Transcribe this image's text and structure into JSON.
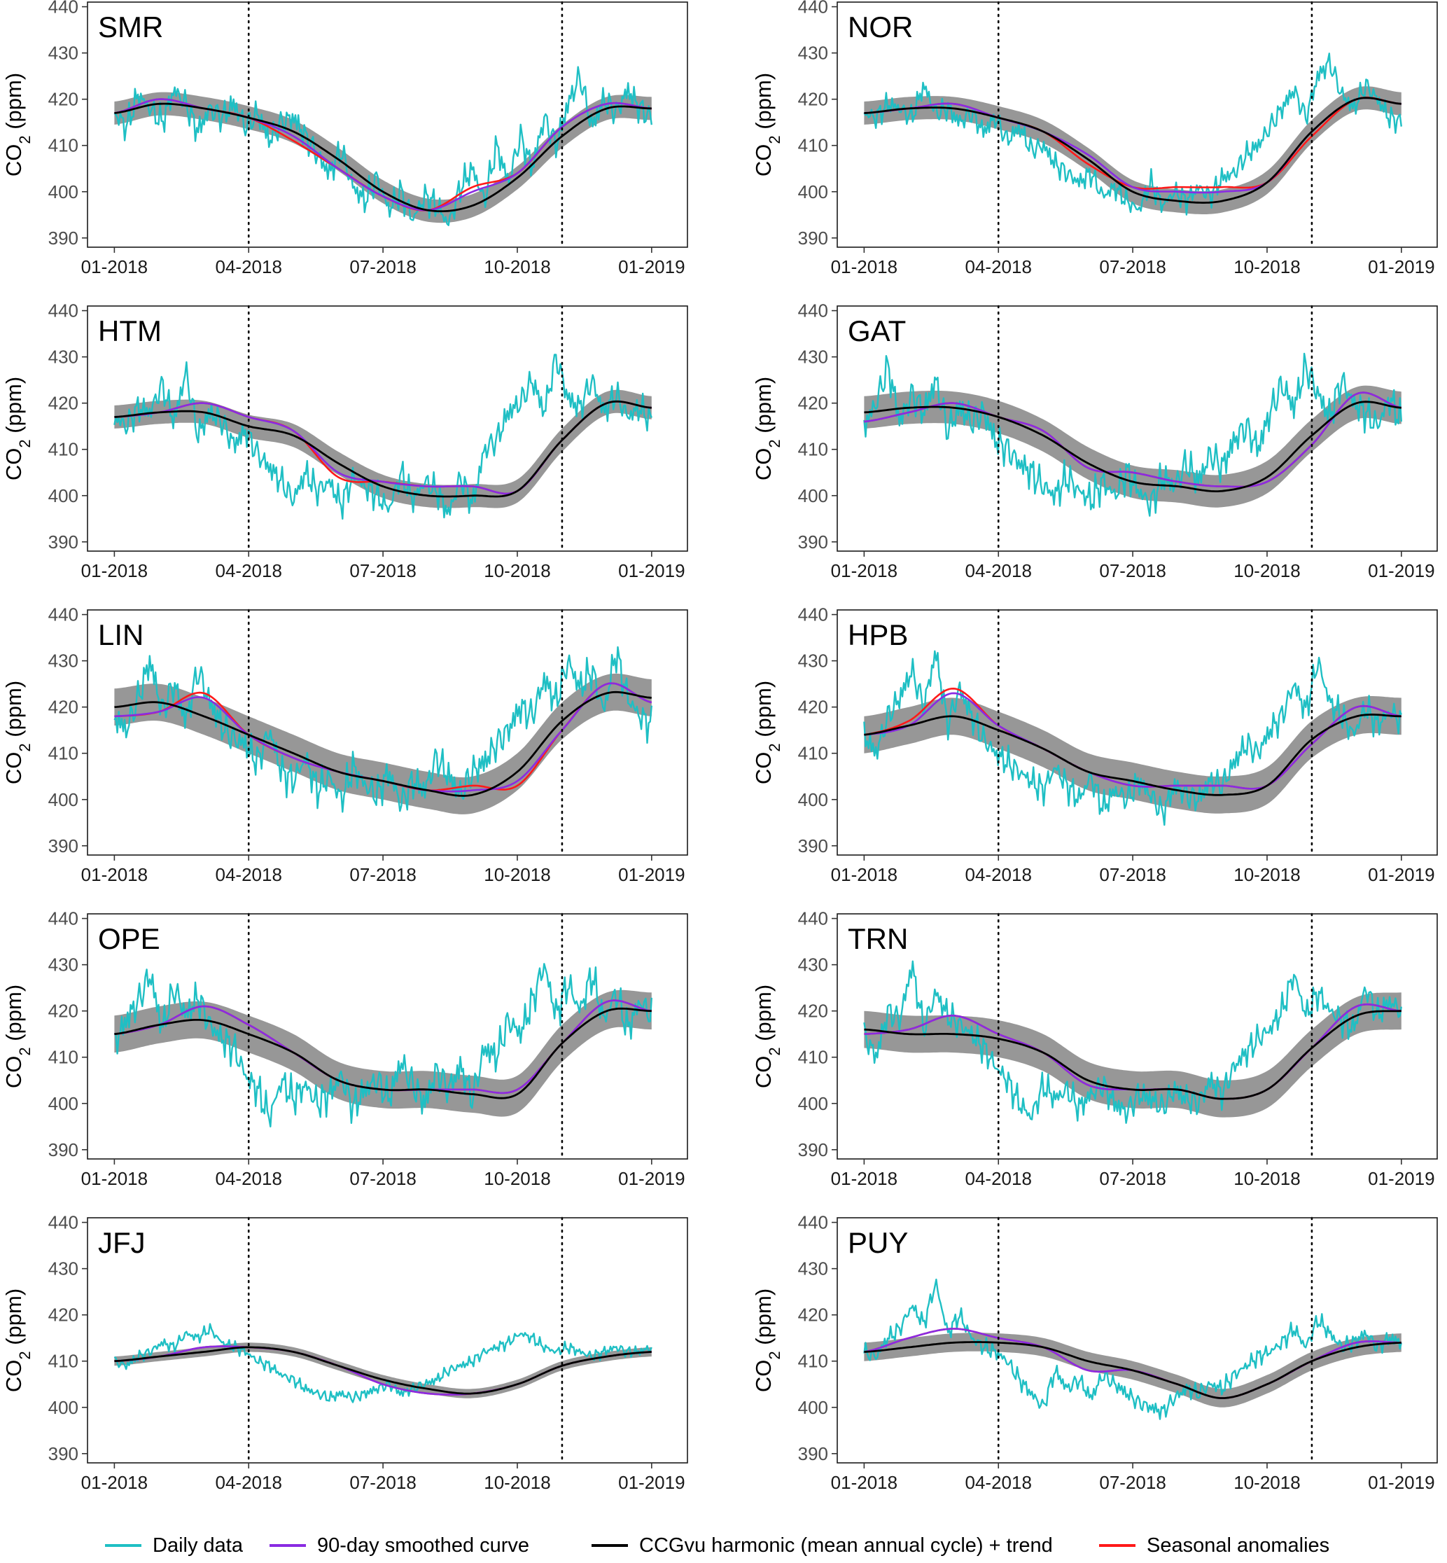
{
  "chart_data": {
    "type": "line",
    "ylabel": "CO2 (ppm)",
    "ylim": [
      388,
      441
    ],
    "yticks": [
      390,
      400,
      410,
      420,
      430,
      440
    ],
    "xlim": [
      -0.6,
      12.8
    ],
    "x_ticks": [
      {
        "month": 0,
        "label": "01-2018"
      },
      {
        "month": 3,
        "label": "04-2018"
      },
      {
        "month": 6,
        "label": "07-2018"
      },
      {
        "month": 9,
        "label": "10-2018"
      },
      {
        "month": 12,
        "label": "01-2019"
      }
    ],
    "vertical_reference_lines_month": [
      3,
      10
    ],
    "grid": false,
    "legend_position": "bottom",
    "legend": [
      {
        "key": "daily",
        "label": "Daily data",
        "color": "#1fbfc4"
      },
      {
        "key": "smoothed",
        "label": "90-day smoothed curve",
        "color": "#8a2be2"
      },
      {
        "key": "harmonic",
        "label": "CCGvu harmonic (mean annual cycle) + trend",
        "color": "#000000"
      },
      {
        "key": "anomaly",
        "label": "Seasonal anomalies",
        "color": "#ff1a1a"
      }
    ],
    "panels": [
      {
        "station": "SMR",
        "months": [
          0,
          1,
          2,
          3,
          4,
          5,
          6,
          7,
          8,
          9,
          10,
          11,
          12
        ],
        "harmonic": [
          417,
          419,
          418,
          416,
          413,
          407,
          400,
          396,
          397,
          403,
          412,
          418,
          418
        ],
        "band": 2.5,
        "smoothed": [
          417,
          420,
          418,
          416,
          412,
          405,
          399,
          396,
          400,
          404,
          414,
          419,
          418
        ],
        "anomaly": [
          417,
          420,
          418,
          416,
          411,
          405,
          399,
          396,
          401,
          404,
          414,
          419,
          418
        ],
        "daily": [
          417,
          414,
          421,
          418,
          415,
          422,
          419,
          413,
          418,
          416,
          419,
          414,
          417,
          411,
          415,
          416,
          412,
          408,
          404,
          409,
          401,
          398,
          403,
          396,
          400,
          394,
          399,
          397,
          393,
          401,
          405,
          398,
          410,
          402,
          412,
          405,
          416,
          410,
          419,
          425,
          414,
          420,
          417,
          422,
          418,
          416
        ],
        "daily_spread": 5
      },
      {
        "station": "NOR",
        "months": [
          0,
          1,
          2,
          3,
          4,
          5,
          6,
          7,
          8,
          9,
          10,
          11,
          12
        ],
        "harmonic": [
          417,
          418,
          418,
          416,
          413,
          407,
          400,
          398,
          398,
          402,
          413,
          420,
          419
        ],
        "band": 2.5,
        "smoothed": [
          417,
          418,
          419,
          416,
          413,
          408,
          401,
          400,
          400,
          402,
          413,
          420,
          419
        ],
        "anomaly": [
          417,
          418,
          419,
          416,
          413,
          406,
          401,
          401,
          401,
          402,
          412,
          420,
          419
        ],
        "daily": [
          417,
          416,
          419,
          418,
          416,
          423,
          417,
          418,
          415,
          417,
          413,
          416,
          411,
          414,
          409,
          410,
          406,
          404,
          402,
          404,
          399,
          401,
          398,
          396,
          402,
          397,
          400,
          398,
          401,
          399,
          403,
          404,
          408,
          410,
          414,
          418,
          422,
          416,
          425,
          428,
          421,
          418,
          423,
          420,
          416,
          415
        ],
        "daily_spread": 4
      },
      {
        "station": "HTM",
        "months": [
          0,
          1,
          2,
          3,
          4,
          5,
          6,
          7,
          8,
          9,
          10,
          11,
          12
        ],
        "harmonic": [
          417,
          418,
          418,
          415,
          413,
          407,
          402,
          400,
          400,
          401,
          412,
          420,
          419
        ],
        "band": 2.5,
        "smoothed": [
          417,
          418,
          420,
          417,
          414,
          405,
          403,
          402,
          402,
          401,
          412,
          420,
          419
        ],
        "anomaly": [
          417,
          418,
          420,
          417,
          414,
          404,
          403,
          402,
          402,
          401,
          412,
          420,
          419
        ],
        "daily": [
          417,
          415,
          419,
          418,
          424,
          416,
          427,
          413,
          418,
          416,
          411,
          414,
          409,
          406,
          403,
          399,
          405,
          401,
          403,
          398,
          404,
          402,
          400,
          397,
          405,
          399,
          403,
          401,
          396,
          404,
          398,
          410,
          412,
          418,
          420,
          425,
          418,
          430,
          421,
          419,
          425,
          418,
          422,
          417,
          419,
          416
        ],
        "daily_spread": 5
      },
      {
        "station": "GAT",
        "months": [
          0,
          1,
          2,
          3,
          4,
          5,
          6,
          7,
          8,
          9,
          10,
          11,
          12
        ],
        "harmonic": [
          418,
          419,
          419,
          417,
          413,
          407,
          403,
          402,
          401,
          404,
          413,
          420,
          419
        ],
        "band": 3.5,
        "smoothed": [
          416,
          418,
          420,
          417,
          414,
          406,
          405,
          403,
          402,
          403,
          411,
          422,
          419
        ],
        "anomaly": [
          416,
          418,
          420,
          417,
          414,
          406,
          405,
          403,
          402,
          403,
          411,
          422,
          419
        ],
        "daily": [
          415,
          420,
          428,
          416,
          422,
          418,
          425,
          414,
          419,
          416,
          418,
          412,
          410,
          407,
          405,
          402,
          400,
          404,
          401,
          399,
          403,
          400,
          405,
          401,
          398,
          404,
          402,
          407,
          403,
          409,
          406,
          412,
          415,
          410,
          418,
          424,
          419,
          428,
          422,
          417,
          425,
          420,
          418,
          415,
          421,
          416
        ],
        "daily_spread": 6
      },
      {
        "station": "LIN",
        "months": [
          0,
          1,
          2,
          3,
          4,
          5,
          6,
          7,
          8,
          9,
          10,
          11,
          12
        ],
        "harmonic": [
          420,
          421,
          418,
          414,
          410,
          406,
          404,
          402,
          401,
          406,
          417,
          423,
          422
        ],
        "band": 4,
        "smoothed": [
          418,
          419,
          422,
          414,
          409,
          406,
          404,
          402,
          402,
          404,
          415,
          425,
          421
        ],
        "anomaly": [
          418,
          419,
          423,
          414,
          409,
          406,
          404,
          402,
          403,
          403,
          415,
          425,
          421
        ],
        "daily": [
          418,
          415,
          422,
          430,
          419,
          425,
          417,
          428,
          421,
          416,
          413,
          412,
          408,
          415,
          406,
          404,
          409,
          402,
          405,
          400,
          407,
          403,
          401,
          406,
          399,
          404,
          402,
          409,
          405,
          401,
          406,
          408,
          412,
          415,
          420,
          418,
          426,
          421,
          430,
          424,
          428,
          419,
          432,
          422,
          418,
          416
        ],
        "daily_spread": 6
      },
      {
        "station": "HPB",
        "months": [
          0,
          1,
          2,
          3,
          4,
          5,
          6,
          7,
          8,
          9,
          10,
          11,
          12
        ],
        "harmonic": [
          414,
          416,
          418,
          415,
          411,
          406,
          404,
          402,
          401,
          403,
          413,
          418,
          418
        ],
        "band": 4,
        "smoothed": [
          414,
          416,
          423,
          416,
          411,
          406,
          403,
          403,
          403,
          403,
          412,
          420,
          418
        ],
        "anomaly": [
          414,
          417,
          424,
          416,
          411,
          406,
          403,
          403,
          403,
          403,
          412,
          420,
          418
        ],
        "daily": [
          414,
          410,
          418,
          422,
          428,
          420,
          432,
          416,
          424,
          418,
          413,
          410,
          408,
          406,
          404,
          402,
          407,
          403,
          400,
          405,
          398,
          402,
          400,
          404,
          401,
          397,
          403,
          401,
          400,
          404,
          403,
          408,
          412,
          410,
          415,
          418,
          425,
          419,
          430,
          421,
          418,
          414,
          420,
          416,
          419,
          417
        ],
        "daily_spread": 5
      },
      {
        "station": "OPE",
        "months": [
          0,
          1,
          2,
          3,
          4,
          5,
          6,
          7,
          8,
          9,
          10,
          11,
          12
        ],
        "harmonic": [
          415,
          417,
          418,
          415,
          411,
          405,
          403,
          403,
          402,
          402,
          413,
          420,
          420
        ],
        "band": 4,
        "smoothed": [
          415,
          417,
          421,
          417,
          411,
          405,
          403,
          403,
          403,
          403,
          413,
          422,
          420
        ],
        "anomaly": [
          415,
          417,
          421,
          417,
          411,
          405,
          403,
          403,
          403,
          403,
          413,
          422,
          420
        ],
        "daily": [
          413,
          418,
          422,
          428,
          416,
          425,
          419,
          423,
          417,
          414,
          412,
          406,
          403,
          397,
          405,
          401,
          404,
          400,
          402,
          406,
          399,
          403,
          405,
          401,
          409,
          404,
          400,
          407,
          403,
          408,
          401,
          412,
          410,
          418,
          415,
          422,
          430,
          419,
          426,
          420,
          428,
          418,
          424,
          416,
          422,
          419
        ],
        "daily_spread": 6
      },
      {
        "station": "TRN",
        "months": [
          0,
          1,
          2,
          3,
          4,
          5,
          6,
          7,
          8,
          9,
          10,
          11,
          12
        ],
        "harmonic": [
          416,
          415,
          415,
          414,
          411,
          405,
          403,
          403,
          401,
          403,
          412,
          419,
          420
        ],
        "band": 4,
        "smoothed": [
          415,
          416,
          419,
          415,
          411,
          404,
          403,
          403,
          401,
          403,
          412,
          421,
          420
        ],
        "anomaly": [
          415,
          416,
          419,
          415,
          411,
          404,
          403,
          403,
          401,
          403,
          412,
          421,
          420
        ],
        "daily": [
          415,
          410,
          420,
          418,
          430,
          416,
          424,
          419,
          417,
          415,
          412,
          408,
          405,
          400,
          397,
          404,
          401,
          403,
          399,
          402,
          404,
          400,
          398,
          402,
          401,
          399,
          403,
          401,
          400,
          405,
          402,
          408,
          411,
          414,
          416,
          420,
          428,
          419,
          424,
          420,
          418,
          416,
          425,
          419,
          422,
          420
        ],
        "daily_spread": 5
      },
      {
        "station": "JFJ",
        "months": [
          0,
          1,
          2,
          3,
          4,
          5,
          6,
          7,
          8,
          9,
          10,
          11,
          12
        ],
        "harmonic": [
          410,
          411,
          412,
          413,
          412,
          409,
          406,
          404,
          403,
          405,
          409,
          411,
          412
        ],
        "band": 1,
        "smoothed": [
          410,
          411,
          413,
          413,
          412,
          409,
          405,
          403,
          403,
          405,
          409,
          411,
          412
        ],
        "anomaly": [
          410,
          411,
          413,
          413,
          412,
          409,
          405,
          403,
          403,
          405,
          409,
          411,
          412
        ],
        "daily": [
          410,
          409,
          411,
          412,
          414,
          413,
          416,
          415,
          417,
          414,
          413,
          412,
          410,
          409,
          407,
          406,
          404,
          403,
          402,
          403,
          402,
          403,
          404,
          405,
          403,
          404,
          405,
          406,
          408,
          409,
          410,
          412,
          413,
          414,
          416,
          415,
          413,
          412,
          413,
          412,
          411,
          412,
          413,
          412,
          412,
          413
        ],
        "daily_spread": 2
      },
      {
        "station": "PUY",
        "months": [
          0,
          1,
          2,
          3,
          4,
          5,
          6,
          7,
          8,
          9,
          10,
          11,
          12
        ],
        "harmonic": [
          412,
          413,
          414,
          414,
          413,
          410,
          408,
          405,
          402,
          405,
          410,
          413,
          414
        ],
        "band": 2,
        "smoothed": [
          412,
          415,
          417,
          415,
          413,
          408,
          408,
          405,
          402,
          405,
          410,
          414,
          414
        ],
        "anomaly": [
          412,
          415,
          417,
          415,
          413,
          408,
          408,
          405,
          402,
          405,
          410,
          414,
          414
        ],
        "daily": [
          412,
          411,
          415,
          417,
          422,
          418,
          427,
          416,
          420,
          415,
          413,
          412,
          410,
          406,
          403,
          400,
          408,
          404,
          406,
          402,
          407,
          405,
          403,
          401,
          400,
          399,
          402,
          404,
          403,
          405,
          404,
          407,
          409,
          411,
          412,
          414,
          417,
          413,
          419,
          416,
          413,
          414,
          416,
          413,
          415,
          414
        ],
        "daily_spread": 3
      }
    ]
  }
}
